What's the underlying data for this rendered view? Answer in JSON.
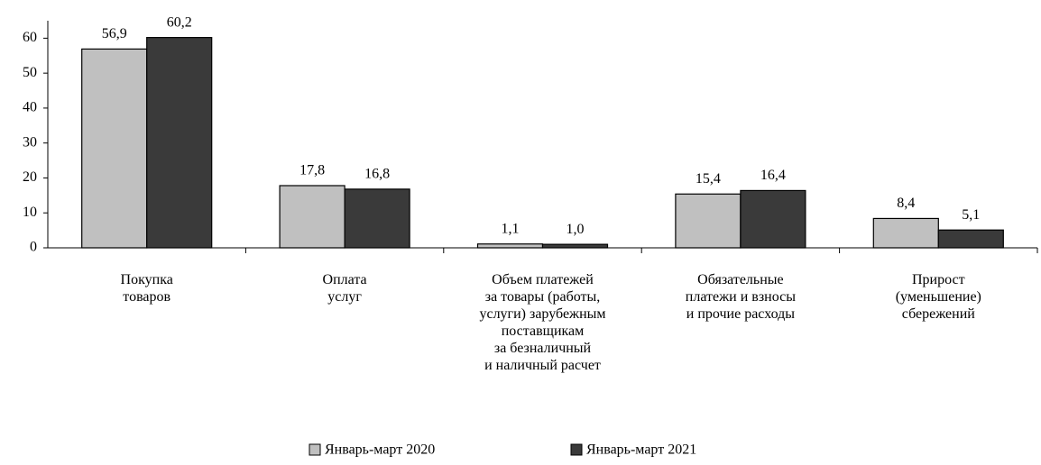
{
  "chart_data": {
    "type": "bar",
    "categories": [
      "Покупка\nтоваров",
      "Оплата\nуслуг",
      "Объем платежей\nза товары (работы,\nуслуги) зарубежным\nпоставщикам\nза безналичный\nи наличный расчет",
      "Обязательные\nплатежи и взносы\nи прочие расходы",
      "Прирост\n(уменьшение)\nсбережений"
    ],
    "series": [
      {
        "name": "Январь-март 2020",
        "color": "#c0c0c0",
        "values": [
          56.9,
          17.8,
          1.1,
          15.4,
          8.4
        ],
        "value_labels": [
          "56,9",
          "17,8",
          "1,1",
          "15,4",
          "8,4"
        ]
      },
      {
        "name": "Январь-март 2021",
        "color": "#3a3a3a",
        "values": [
          60.2,
          16.8,
          1.0,
          16.4,
          5.1
        ],
        "value_labels": [
          "60,2",
          "16,8",
          "1,0",
          "16,4",
          "5,1"
        ]
      }
    ],
    "ylim": [
      0,
      65
    ],
    "yticks": [
      0,
      10,
      20,
      30,
      40,
      50,
      60
    ],
    "legend": "bottom"
  }
}
